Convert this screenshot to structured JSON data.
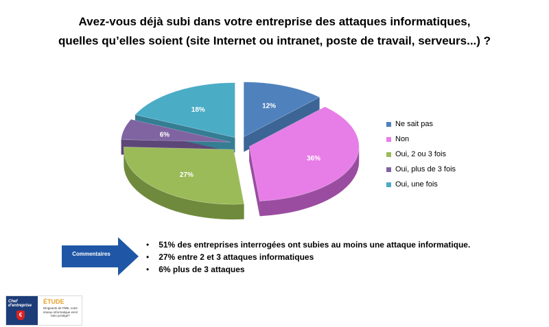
{
  "title": {
    "line1": "Avez-vous déjà subi dans votre entreprise des attaques informatiques,",
    "line2": "quelles qu’elles soient (site Internet ou intranet, poste de travail, serveurs...) ?"
  },
  "chart_data": {
    "type": "pie",
    "style": "3d-exploded",
    "legend_position": "right",
    "series": [
      {
        "name": "Ne sait pas",
        "value": 12,
        "label": "12%",
        "color": "#4f81bd",
        "side": "#3c6595"
      },
      {
        "name": "Non",
        "value": 36,
        "label": "36%",
        "color": "#e77ee7",
        "side": "#9a4da0"
      },
      {
        "name": "Oui, 2 ou 3 fois",
        "value": 27,
        "label": "27%",
        "color": "#9bbb59",
        "side": "#6f8a3c"
      },
      {
        "name": "Oui, plus de 3 fois",
        "value": 6,
        "label": "6%",
        "color": "#8064a2",
        "side": "#5c4778"
      },
      {
        "name": "Oui, une fois",
        "value": 18,
        "label": "18%",
        "color": "#4bacc6",
        "side": "#357d92"
      }
    ]
  },
  "comments": {
    "label": "Commentaires",
    "arrow_color": "#1f57a6",
    "items": [
      "51% des entreprises interrogées ont subies au moins une attaque informatique.",
      "27% entre 2 et 3 attaques informatiques",
      "6% plus de 3 attaques"
    ]
  },
  "badge": {
    "brand": "Chef d'entreprise",
    "title": "ÉTUDE",
    "text": "Dirigeants de PME, votre réseau informatique est-il bien protégé?",
    "shield_glyph": "€"
  }
}
